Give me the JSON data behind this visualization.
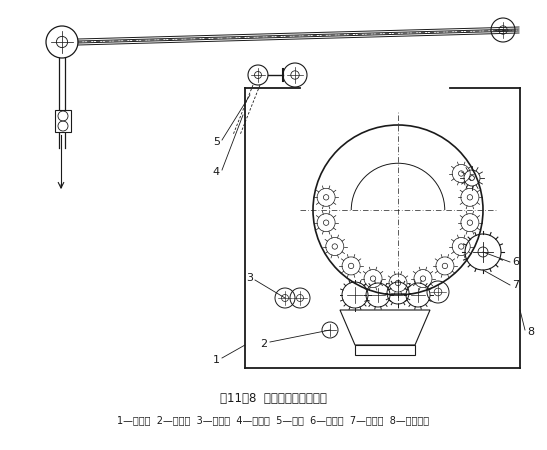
{
  "title": "图11－8  双动式钢丝针起毛机",
  "caption": "1—除尘箱  2—张力辊  3—毛刷辊  4—进呢辊  5—针辊  6—刷毛辊  7—出呢辊  8—起毛辊筒",
  "bg_color": "#ffffff",
  "line_color": "#1a1a1a",
  "title_fontsize": 8.5,
  "caption_fontsize": 7.0
}
